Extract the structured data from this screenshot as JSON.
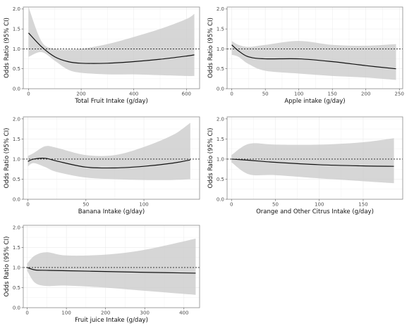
{
  "chart_data": [
    {
      "type": "line",
      "xlabel": "Total Fruit Intake (g/day)",
      "ylabel": "Odds Ratio (95% CI)",
      "xlim": [
        -20,
        650
      ],
      "ylim": [
        0,
        2.05
      ],
      "xticks": [
        0,
        200,
        400,
        600
      ],
      "yticks": [
        0.0,
        0.5,
        1.0,
        1.5,
        2.0
      ],
      "reference_line": 1.0,
      "series": [
        {
          "x": [
            0,
            50,
            100,
            150,
            200,
            300,
            400,
            500,
            600,
            630
          ],
          "y": [
            1.4,
            1.05,
            0.8,
            0.68,
            0.64,
            0.64,
            0.68,
            0.74,
            0.82,
            0.85
          ],
          "lower": [
            0.8,
            0.92,
            0.7,
            0.48,
            0.4,
            0.36,
            0.36,
            0.34,
            0.32,
            0.32
          ],
          "upper": [
            2.05,
            1.18,
            1.0,
            0.98,
            1.0,
            1.12,
            1.3,
            1.5,
            1.75,
            1.88
          ]
        }
      ]
    },
    {
      "type": "line",
      "xlabel": "Apple intake (g/day)",
      "ylabel": "Odds Ratio (95% CI)",
      "xlim": [
        -7,
        255
      ],
      "ylim": [
        0,
        2.05
      ],
      "xticks": [
        0,
        50,
        100,
        150,
        200,
        250
      ],
      "yticks": [
        0.0,
        0.5,
        1.0,
        1.5,
        2.0
      ],
      "reference_line": 1.0,
      "series": [
        {
          "x": [
            0,
            10,
            25,
            50,
            100,
            150,
            200,
            245
          ],
          "y": [
            1.1,
            0.95,
            0.8,
            0.75,
            0.75,
            0.68,
            0.58,
            0.5
          ],
          "lower": [
            0.85,
            0.8,
            0.62,
            0.45,
            0.38,
            0.32,
            0.28,
            0.22
          ],
          "upper": [
            1.2,
            1.1,
            1.05,
            1.1,
            1.2,
            1.1,
            1.08,
            1.12
          ]
        }
      ]
    },
    {
      "type": "line",
      "xlabel": "Banana Intake (g/day)",
      "ylabel": "Odds Ratio (95% CI)",
      "xlim": [
        -4,
        148
      ],
      "ylim": [
        0,
        2.05
      ],
      "xticks": [
        0,
        50,
        100
      ],
      "yticks": [
        0.0,
        0.5,
        1.0,
        1.5,
        2.0
      ],
      "reference_line": 1.0,
      "series": [
        {
          "x": [
            0,
            5,
            15,
            25,
            50,
            75,
            100,
            125,
            140
          ],
          "y": [
            0.94,
            1.0,
            1.02,
            0.95,
            0.8,
            0.78,
            0.82,
            0.9,
            0.98
          ],
          "lower": [
            0.82,
            0.9,
            0.8,
            0.68,
            0.54,
            0.5,
            0.48,
            0.48,
            0.5
          ],
          "upper": [
            1.08,
            1.15,
            1.32,
            1.28,
            1.1,
            1.1,
            1.3,
            1.6,
            1.9
          ]
        }
      ]
    },
    {
      "type": "line",
      "xlabel": "Orange and Other Citrus Intake (g/day)",
      "ylabel": "Odds Ratio (95% CI)",
      "xlim": [
        -5,
        195
      ],
      "ylim": [
        0,
        2.05
      ],
      "xticks": [
        0,
        50,
        100,
        150
      ],
      "yticks": [
        0.0,
        0.5,
        1.0,
        1.5,
        2.0
      ],
      "reference_line": 1.0,
      "series": [
        {
          "x": [
            0,
            20,
            50,
            100,
            150,
            185
          ],
          "y": [
            1.0,
            0.97,
            0.92,
            0.86,
            0.83,
            0.82
          ],
          "lower": [
            0.92,
            0.62,
            0.6,
            0.52,
            0.45,
            0.4
          ],
          "upper": [
            1.1,
            1.38,
            1.36,
            1.36,
            1.42,
            1.52
          ]
        }
      ]
    },
    {
      "type": "line",
      "xlabel": "Fruit juice Intake (g/day)",
      "ylabel": "Odds Ratio (95% CI)",
      "xlim": [
        -10,
        440
      ],
      "ylim": [
        0,
        2.05
      ],
      "xticks": [
        0,
        100,
        200,
        300,
        400
      ],
      "yticks": [
        0.0,
        0.5,
        1.0,
        1.5,
        2.0
      ],
      "reference_line": 1.0,
      "series": [
        {
          "x": [
            0,
            20,
            50,
            100,
            200,
            300,
            430
          ],
          "y": [
            1.0,
            0.94,
            0.93,
            0.92,
            0.9,
            0.88,
            0.86
          ],
          "lower": [
            0.92,
            0.62,
            0.54,
            0.55,
            0.5,
            0.42,
            0.32
          ],
          "upper": [
            1.1,
            1.3,
            1.38,
            1.3,
            1.32,
            1.44,
            1.72
          ]
        }
      ]
    }
  ]
}
